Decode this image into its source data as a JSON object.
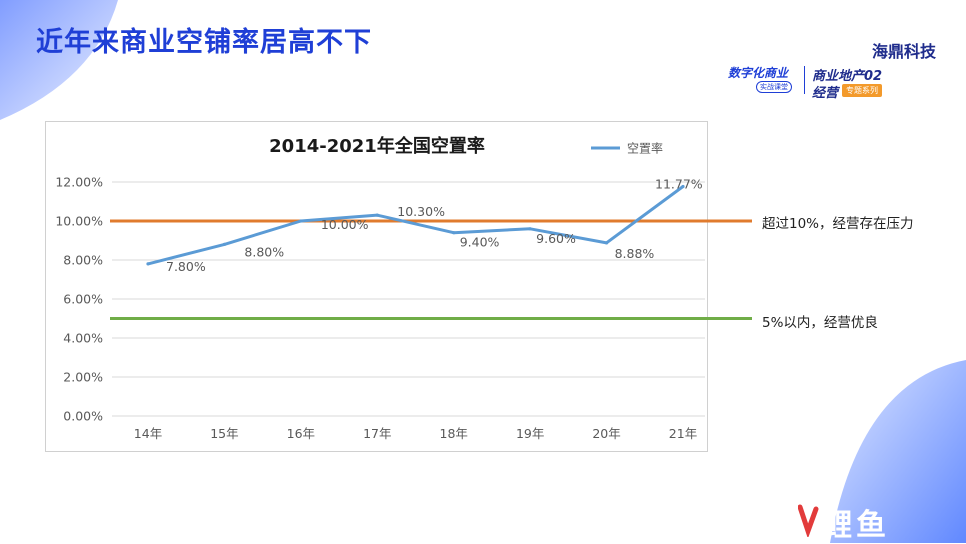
{
  "slide": {
    "title": "近年来商业空铺率居高不下"
  },
  "brand": {
    "company": "海鼎科技",
    "left_line1": "数字化商业",
    "left_line2": "实战课堂",
    "series_line1": "商业地产02",
    "series_line2": "经营",
    "series_tag": "专题系列"
  },
  "annotations": {
    "high_label": "超过10%，经营存在压力",
    "good_label": "5%以内，经营优良"
  },
  "watermark": "鲤鱼",
  "chart_data": {
    "type": "line",
    "title": "2014-2021年全国空置率",
    "categories": [
      "14年",
      "15年",
      "16年",
      "17年",
      "18年",
      "19年",
      "20年",
      "21年"
    ],
    "series": [
      {
        "name": "空置率",
        "values": [
          7.8,
          8.8,
          10.0,
          10.3,
          9.4,
          9.6,
          8.88,
          11.77
        ],
        "color": "#5b9bd5"
      }
    ],
    "data_labels": [
      "7.80%",
      "8.80%",
      "10.00%",
      "10.30%",
      "9.40%",
      "9.60%",
      "8.88%",
      "11.77%"
    ],
    "ylim": [
      0,
      12
    ],
    "yticks": [
      0,
      2,
      4,
      6,
      8,
      10,
      12
    ],
    "ytick_labels": [
      "0.00%",
      "2.00%",
      "4.00%",
      "6.00%",
      "8.00%",
      "10.00%",
      "12.00%"
    ],
    "grid": true,
    "legend": "top-right",
    "reference_lines": [
      {
        "value": 10,
        "color": "#e07b2e"
      },
      {
        "value": 5,
        "color": "#70ad47"
      }
    ]
  }
}
